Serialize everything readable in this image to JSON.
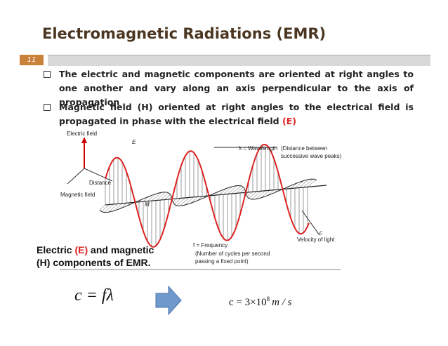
{
  "header": {
    "title": "Electromagnetic Radiations (EMR)",
    "slide_number": "11"
  },
  "bullets": [
    {
      "parts": [
        "The electric and magnetic components are oriented at right angles to one another and vary along an axis perpendicular to the axis of propagation"
      ]
    },
    {
      "parts": [
        "Magnetic field (H) oriented at right angles to the electrical field is propagated in phase with the electrical field ",
        "(E)"
      ]
    }
  ],
  "figure": {
    "labels": {
      "electric_field": "Electric field",
      "e": "E",
      "wavelength": "λ = Wavelength",
      "wavelength_note_1": "(Distance between",
      "wavelength_note_2": "successive wave peaks)",
      "distance": "Distance",
      "magnetic_field": "Magnetic field",
      "m": "M",
      "frequency": "f = Frequency",
      "frequency_note_1": "(Number of cycles per second",
      "frequency_note_2": "passing a fixed point)",
      "c": "c",
      "velocity": "Velocity of light"
    },
    "caption": {
      "line1_parts": [
        "Electric ",
        "(E)",
        " and magnetic"
      ],
      "line2": "(H) components of EMR."
    }
  },
  "equations": {
    "left": "c = fλ",
    "right": {
      "base": "c = 3×10",
      "exponent": "8",
      "unit": "m / s"
    }
  }
}
